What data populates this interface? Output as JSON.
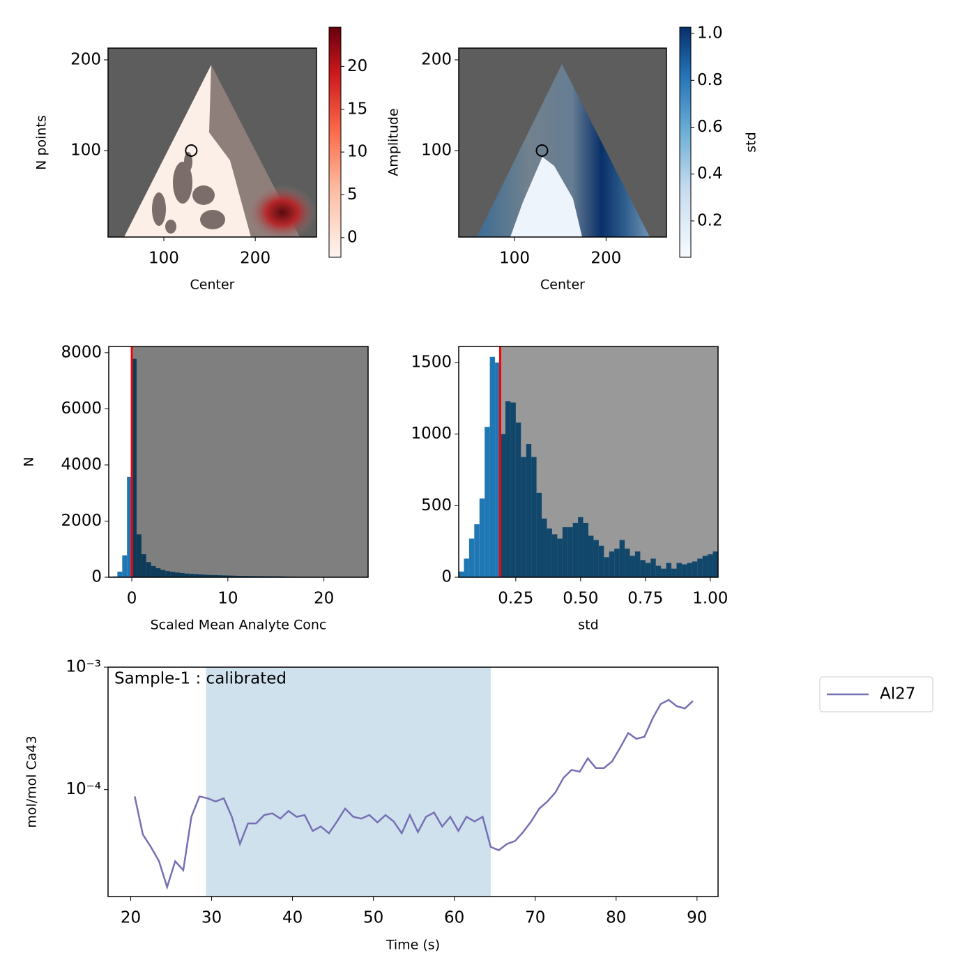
{
  "chart_data": [
    {
      "type": "heatmap",
      "xlabel": "Center",
      "ylabel": "N points",
      "xlim": [
        39,
        267
      ],
      "ylim": [
        4.6,
        213
      ],
      "xticks": [
        100,
        200
      ],
      "yticks": [
        100,
        200
      ],
      "marker": {
        "x": 130,
        "y": 100
      },
      "colorbar_label": "Amplitude",
      "cmap": "Reds",
      "clim": [
        -2.3,
        24.6
      ],
      "cticks": [
        0,
        5,
        10,
        15,
        20
      ]
    },
    {
      "type": "heatmap",
      "xlabel": "Center",
      "xlim": [
        39,
        266
      ],
      "ylim": [
        4.6,
        213
      ],
      "xticks": [
        100,
        200
      ],
      "yticks": [
        100,
        200
      ],
      "marker": {
        "x": 130,
        "y": 100
      },
      "colorbar_label": "std",
      "cmap": "Blues",
      "clim": [
        0.045,
        1.027
      ],
      "cticks": [
        0.2,
        0.4,
        0.6,
        0.8,
        {
          "value": 1,
          "label": "1.0"
        }
      ]
    },
    {
      "type": "histogram",
      "xlabel": "Scaled Mean Analyte Conc",
      "ylabel": "N",
      "color": "#1f77b4",
      "threshold": 0,
      "threshold_color": "#ff0000",
      "xlim": [
        -2.4,
        24.6
      ],
      "ylim": [
        0,
        8220
      ],
      "xticks": [
        0,
        10,
        20
      ],
      "yticks": [
        0,
        2000,
        4000,
        6000,
        8000
      ],
      "bins": [
        -2.5,
        -2,
        -1.5,
        -1,
        -0.5,
        0,
        0.5,
        1,
        1.5,
        2,
        2.5,
        3,
        3.5,
        4,
        4.5,
        5,
        5.5,
        6,
        6.5,
        7,
        7.5,
        8,
        8.5,
        9,
        9.5,
        10,
        10.5,
        11,
        11.5,
        12,
        12.5,
        13,
        13.5,
        14,
        14.5,
        15,
        15.5,
        16,
        16.5,
        17,
        17.5,
        18,
        18.5,
        19,
        19.5,
        20,
        20.5,
        21,
        21.5,
        22,
        22.5,
        23,
        23.5,
        24,
        24.5
      ],
      "values": [
        20,
        30,
        200,
        780,
        3580,
        7780,
        1530,
        820,
        540,
        400,
        320,
        260,
        220,
        190,
        170,
        150,
        130,
        120,
        110,
        100,
        90,
        80,
        75,
        70,
        65,
        60,
        55,
        50,
        48,
        45,
        42,
        40,
        38,
        36,
        35,
        33,
        30,
        25,
        20,
        18,
        15,
        14,
        12,
        11,
        10,
        9,
        8,
        8,
        7,
        6,
        6,
        5,
        5,
        4
      ]
    },
    {
      "type": "histogram",
      "xlabel": "std",
      "color": "#1f77b4",
      "threshold": 0.19,
      "threshold_color": "#ff0000",
      "xlim": [
        0.03,
        1.03
      ],
      "ylim": [
        0,
        1612
      ],
      "xticks": [
        {
          "value": 0.25,
          "label": "0.25"
        },
        {
          "value": 0.5,
          "label": "0.50"
        },
        {
          "value": 0.75,
          "label": "0.75"
        },
        {
          "value": 1,
          "label": "1.00"
        }
      ],
      "yticks": [
        0,
        500,
        1000,
        1500
      ],
      "bins": [
        0.03,
        0.05,
        0.07,
        0.09,
        0.11,
        0.13,
        0.15,
        0.17,
        0.19,
        0.21,
        0.23,
        0.25,
        0.27,
        0.29,
        0.31,
        0.33,
        0.35,
        0.37,
        0.39,
        0.41,
        0.43,
        0.45,
        0.47,
        0.49,
        0.51,
        0.53,
        0.55,
        0.57,
        0.59,
        0.61,
        0.63,
        0.65,
        0.67,
        0.69,
        0.71,
        0.73,
        0.75,
        0.77,
        0.79,
        0.81,
        0.83,
        0.85,
        0.87,
        0.89,
        0.91,
        0.93,
        0.95,
        0.97,
        0.99,
        1.01,
        1.03
      ],
      "values": [
        40,
        130,
        270,
        370,
        550,
        1050,
        1540,
        1500,
        1000,
        1230,
        1220,
        1080,
        840,
        930,
        840,
        590,
        410,
        340,
        300,
        270,
        350,
        350,
        380,
        420,
        380,
        290,
        260,
        220,
        140,
        180,
        200,
        260,
        200,
        150,
        180,
        120,
        100,
        130,
        80,
        60,
        100,
        60,
        100,
        90,
        100,
        110,
        130,
        150,
        160,
        180
      ]
    },
    {
      "type": "line",
      "xlabel": "Time (s)",
      "ylabel": "mol/mol Ca43",
      "annotation": "Sample-1 : calibrated",
      "yscale": "log",
      "legend": "outside right",
      "span": [
        29.3,
        64.5
      ],
      "span_color": "#d0e1ee",
      "xlim": [
        17.2,
        92.6
      ],
      "ylim": [
        1.34e-05,
        0.001
      ],
      "xticks": [
        20,
        30,
        40,
        50,
        60,
        70,
        80,
        90
      ],
      "yticks": [
        {
          "value": 0.0001,
          "label": "10⁻⁴"
        },
        {
          "value": 0.001,
          "label": "10⁻³"
        }
      ],
      "x": [
        20.5,
        21.5,
        22.5,
        23.5,
        24.5,
        25.5,
        26.5,
        27.5,
        28.5,
        29.5,
        30.5,
        31.5,
        32.5,
        33.5,
        34.5,
        35.5,
        36.5,
        37.5,
        38.5,
        39.5,
        40.5,
        41.5,
        42.5,
        43.5,
        44.5,
        45.5,
        46.5,
        47.5,
        48.5,
        49.5,
        50.5,
        51.5,
        52.5,
        53.5,
        54.5,
        55.5,
        56.5,
        57.5,
        58.5,
        59.5,
        60.5,
        61.5,
        62.5,
        63.5,
        64.5,
        65.5,
        66.5,
        67.5,
        68.5,
        69.5,
        70.5,
        71.5,
        72.5,
        73.5,
        74.5,
        75.5,
        76.5,
        77.5,
        78.5,
        79.5,
        80.5,
        81.5,
        82.5,
        83.5,
        84.5,
        85.5,
        86.5,
        87.5,
        88.5,
        89.5
      ],
      "series": [
        {
          "name": "Al27",
          "color": "#7570b3",
          "values": [
            8.8e-05,
            4.3e-05,
            3.4e-05,
            2.6e-05,
            1.6e-05,
            2.6e-05,
            2.2e-05,
            6e-05,
            8.8e-05,
            8.5e-05,
            8e-05,
            8.5e-05,
            6e-05,
            3.6e-05,
            5.3e-05,
            5.3e-05,
            6.2e-05,
            6.4e-05,
            5.8e-05,
            6.7e-05,
            6e-05,
            6.2e-05,
            4.6e-05,
            5e-05,
            4.4e-05,
            5.5e-05,
            7e-05,
            6e-05,
            5.8e-05,
            6.2e-05,
            5.4e-05,
            6.2e-05,
            5.5e-05,
            4.4e-05,
            6.2e-05,
            4.5e-05,
            6e-05,
            6.5e-05,
            5e-05,
            6e-05,
            4.6e-05,
            6e-05,
            5.5e-05,
            6e-05,
            3.4e-05,
            3.2e-05,
            3.6e-05,
            3.8e-05,
            4.5e-05,
            5.5e-05,
            7e-05,
            8e-05,
            9.5e-05,
            0.000125,
            0.000145,
            0.00014,
            0.00018,
            0.00015,
            0.00015,
            0.00017,
            0.00022,
            0.00029,
            0.00026,
            0.00027,
            0.00038,
            0.0005,
            0.00054,
            0.00048,
            0.00046,
            0.00053
          ]
        }
      ]
    }
  ]
}
